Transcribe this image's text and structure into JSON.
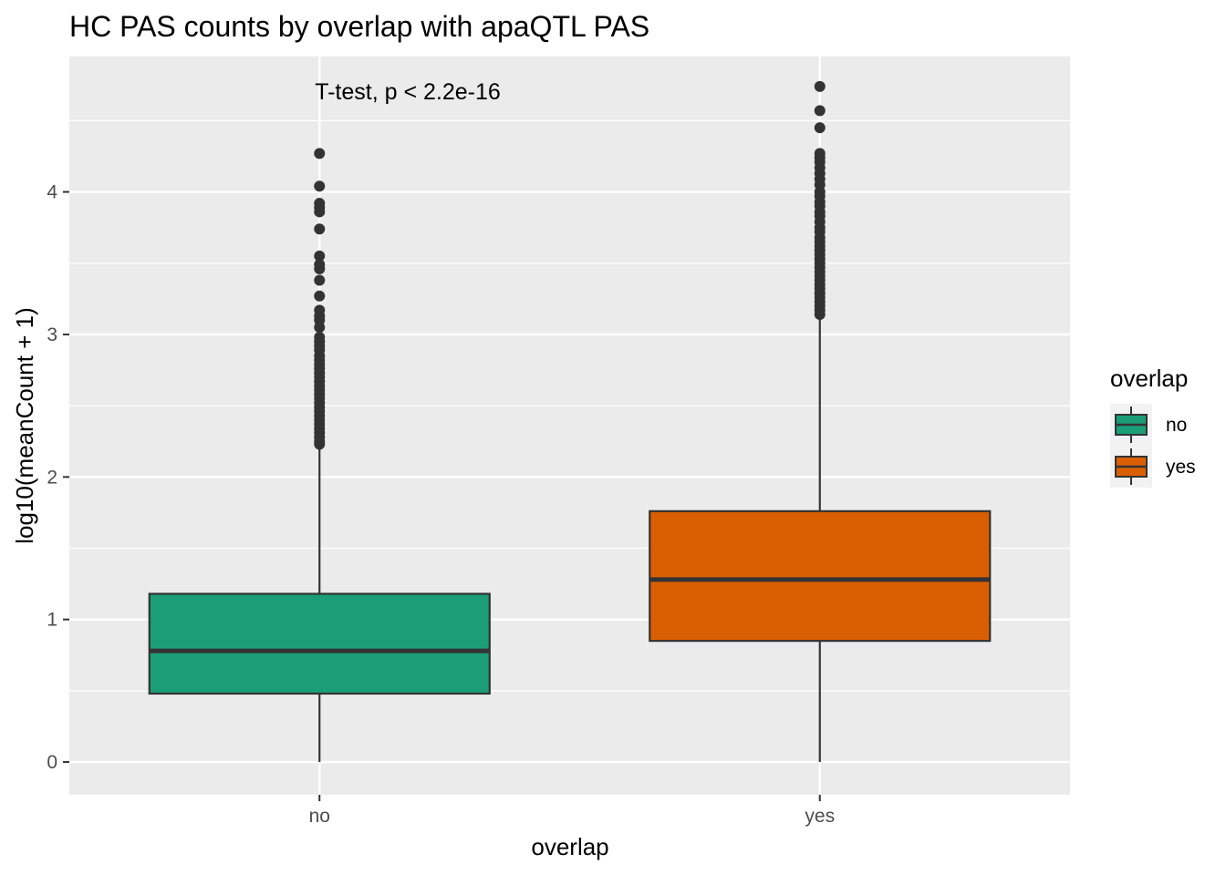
{
  "chart_data": {
    "type": "box",
    "title": "HC PAS counts by overlap with apaQTL PAS",
    "xlabel": "overlap",
    "ylabel": "log10(meanCount + 1)",
    "categories": [
      "no",
      "yes"
    ],
    "ylim": [
      -0.23,
      4.95
    ],
    "yticks": [
      0,
      1,
      2,
      3,
      4
    ],
    "ytick_labels": [
      "0",
      "1",
      "2",
      "3",
      "4"
    ],
    "grid": true,
    "annotation": "T-test, p < 2.2e-16",
    "legend": {
      "title": "overlap",
      "position": "right",
      "entries": [
        {
          "label": "no",
          "color": "#1b9e77"
        },
        {
          "label": "yes",
          "color": "#d95f02"
        }
      ]
    },
    "colors": {
      "panel": "#ebebeb",
      "grid": "#ffffff",
      "outline": "#333333",
      "no": "#1b9e77",
      "yes": "#d95f02"
    },
    "boxes": [
      {
        "category": "no",
        "whisker_low": 0.0,
        "q1": 0.48,
        "median": 0.78,
        "q3": 1.18,
        "whisker_high": 2.22,
        "outliers": [
          4.27,
          4.04,
          3.92,
          3.89,
          3.86,
          3.74,
          3.55,
          3.49,
          3.46,
          3.38,
          3.27,
          3.17,
          3.13,
          3.1,
          3.05,
          2.98,
          2.95,
          2.92,
          2.89,
          2.85,
          2.82,
          2.79,
          2.76,
          2.73,
          2.7,
          2.67,
          2.64,
          2.61,
          2.58,
          2.55,
          2.52,
          2.49,
          2.46,
          2.43,
          2.4,
          2.37,
          2.34,
          2.31,
          2.28,
          2.25,
          2.23
        ]
      },
      {
        "category": "yes",
        "whisker_low": 0.0,
        "q1": 0.85,
        "median": 1.28,
        "q3": 1.76,
        "whisker_high": 3.12,
        "outliers": [
          4.74,
          4.57,
          4.45,
          4.27,
          4.24,
          4.21,
          4.17,
          4.13,
          4.09,
          4.05,
          4.0,
          3.97,
          3.93,
          3.9,
          3.86,
          3.83,
          3.79,
          3.75,
          3.72,
          3.68,
          3.65,
          3.62,
          3.59,
          3.56,
          3.53,
          3.5,
          3.47,
          3.44,
          3.41,
          3.38,
          3.35,
          3.32,
          3.29,
          3.26,
          3.23,
          3.2,
          3.17,
          3.14
        ]
      }
    ]
  }
}
